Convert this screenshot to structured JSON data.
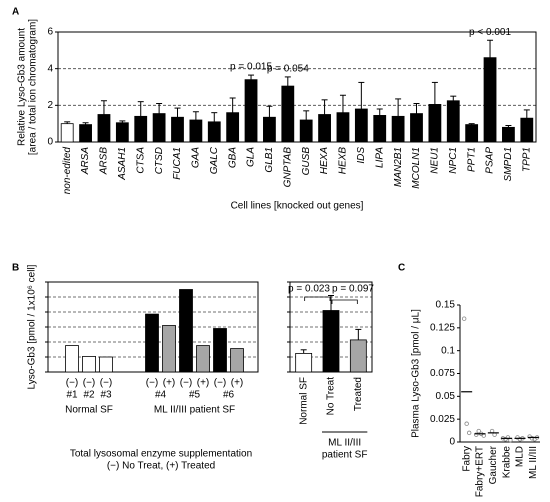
{
  "chart_data": [
    {
      "type": "bar",
      "panel": "A",
      "ylabel": [
        "Relative Lyso-Gb3 amount",
        "[area / total ion chromatogram]"
      ],
      "xlabel": "Cell lines [knocked out genes]",
      "categories": [
        "non-edited",
        "ARSA",
        "ARSB",
        "ASAH1",
        "CTSA",
        "CTSD",
        "FUCA1",
        "GAA",
        "GALC",
        "GBA",
        "GLA",
        "GLB1",
        "GNPTAB",
        "GUSB",
        "HEXA",
        "HEXB",
        "IDS",
        "LIPA",
        "MAN2B1",
        "MCOLN1",
        "NEU1",
        "NPC1",
        "PPT1",
        "PSAP",
        "SMPD1",
        "TPP1"
      ],
      "values": [
        1.0,
        0.95,
        1.5,
        1.05,
        1.4,
        1.55,
        1.35,
        1.2,
        1.1,
        1.6,
        3.4,
        1.35,
        3.05,
        1.2,
        1.5,
        1.6,
        1.8,
        1.45,
        1.4,
        1.55,
        2.05,
        2.25,
        0.95,
        4.6,
        0.8,
        1.3
      ],
      "errors": [
        0.1,
        0.1,
        0.75,
        0.1,
        0.8,
        0.55,
        0.5,
        0.45,
        0.5,
        0.8,
        0.25,
        0.6,
        0.5,
        0.5,
        0.8,
        0.95,
        1.45,
        0.35,
        0.95,
        0.55,
        1.2,
        0.25,
        0.05,
        0.95,
        0.1,
        0.45
      ],
      "colors": [
        "#ffffff",
        "#000000",
        "#000000",
        "#000000",
        "#000000",
        "#000000",
        "#000000",
        "#000000",
        "#000000",
        "#000000",
        "#000000",
        "#000000",
        "#000000",
        "#000000",
        "#000000",
        "#000000",
        "#000000",
        "#000000",
        "#000000",
        "#000000",
        "#000000",
        "#000000",
        "#000000",
        "#000000",
        "#000000",
        "#000000"
      ],
      "annotations": [
        {
          "text": "p = 0.015",
          "at": "GLA"
        },
        {
          "text": "p = 0.054",
          "at": "GNPTAB"
        },
        {
          "text": "p < 0.001",
          "at": "PSAP"
        }
      ],
      "ylim": [
        0,
        6
      ],
      "yticks": [
        0,
        2,
        4,
        6
      ],
      "grid": "dashed",
      "tick_labels": true
    },
    {
      "type": "grouped_bar",
      "panel": "B",
      "ylabel": "Lyso-Gb3 [pmol / 1x10⁶ cell]",
      "groups": [
        {
          "name": "Normal SF",
          "samples": [
            {
              "name": "#1",
              "bars": [
                {
                  "label": "(−)",
                  "value": 0.88,
                  "color": "#ffffff"
                }
              ]
            },
            {
              "name": "#2",
              "bars": [
                {
                  "label": "(−)",
                  "value": 0.52,
                  "color": "#ffffff"
                }
              ]
            },
            {
              "name": "#3",
              "bars": [
                {
                  "label": "(−)",
                  "value": 0.5,
                  "color": "#ffffff"
                }
              ]
            }
          ]
        },
        {
          "name": "ML II/III patient SF",
          "samples": [
            {
              "name": "#4",
              "bars": [
                {
                  "label": "(−)",
                  "value": 1.93,
                  "color": "#000000"
                },
                {
                  "label": "(+)",
                  "value": 1.55,
                  "color": "#a6a6a6"
                }
              ]
            },
            {
              "name": "#5",
              "bars": [
                {
                  "label": "(−)",
                  "value": 2.75,
                  "color": "#000000"
                },
                {
                  "label": "(+)",
                  "value": 0.88,
                  "color": "#a6a6a6"
                }
              ]
            },
            {
              "name": "#6",
              "bars": [
                {
                  "label": "(−)",
                  "value": 1.45,
                  "color": "#000000"
                },
                {
                  "label": "(+)",
                  "value": 0.78,
                  "color": "#a6a6a6"
                }
              ]
            }
          ]
        }
      ],
      "footnote": [
        "Total lysosomal enzyme supplementation",
        "(−) No Treat, (+) Treated"
      ],
      "ylim": [
        0,
        3
      ],
      "yticks": [
        0,
        0.5,
        1,
        1.5,
        2,
        2.5,
        3
      ],
      "grid": "dashed",
      "tick_labels": false
    },
    {
      "type": "bar",
      "categories": [
        "Normal SF",
        "No Treat",
        "Treated"
      ],
      "values": [
        0.62,
        2.05,
        1.07
      ],
      "errors": [
        0.12,
        0.5,
        0.35
      ],
      "colors": [
        "#ffffff",
        "#000000",
        "#a6a6a6"
      ],
      "annotations": [
        {
          "text": "p = 0.023",
          "from": "Normal SF",
          "to": "No Treat"
        },
        {
          "text": "p = 0.097",
          "from": "No Treat",
          "to": "Treated"
        }
      ],
      "bracket": {
        "label": [
          "ML II/III",
          "patient SF"
        ],
        "from": "No Treat",
        "to": "Treated"
      },
      "ylim": [
        0,
        3
      ],
      "yticks": [
        0,
        0.5,
        1,
        1.5,
        2,
        2.5,
        3
      ],
      "grid": "dashed",
      "tick_labels": false
    },
    {
      "type": "dot",
      "panel": "C",
      "ylabel": "Plasma Lyso-Gb3 [pmol / μL]",
      "groups": [
        {
          "name": "Fabry",
          "points": [
            0.135,
            0.02,
            0.01
          ],
          "mean": 0.055
        },
        {
          "name": "Fabry+ERT",
          "points": [
            0.008,
            0.012,
            0.009,
            0.007
          ],
          "mean": 0.009
        },
        {
          "name": "Gaucher",
          "points": [
            0.012,
            0.008
          ],
          "mean": 0.01
        },
        {
          "name": "Krabbe",
          "points": [
            0.004,
            0.003,
            0.005,
            0.002
          ],
          "mean": 0.004
        },
        {
          "name": "MLD",
          "points": [
            0.005,
            0.003,
            0.004
          ],
          "mean": 0.004
        },
        {
          "name": "ML II/III",
          "points": [
            0.006,
            0.004,
            0.003,
            0.005
          ],
          "mean": 0.005
        }
      ],
      "point_color": "#888888",
      "mean_color": "#000000",
      "ylim": [
        0,
        0.15
      ],
      "yticks": [
        0,
        0.025,
        0.05,
        0.075,
        0.1,
        0.125,
        0.15
      ],
      "grid": false,
      "tick_labels": true
    }
  ]
}
